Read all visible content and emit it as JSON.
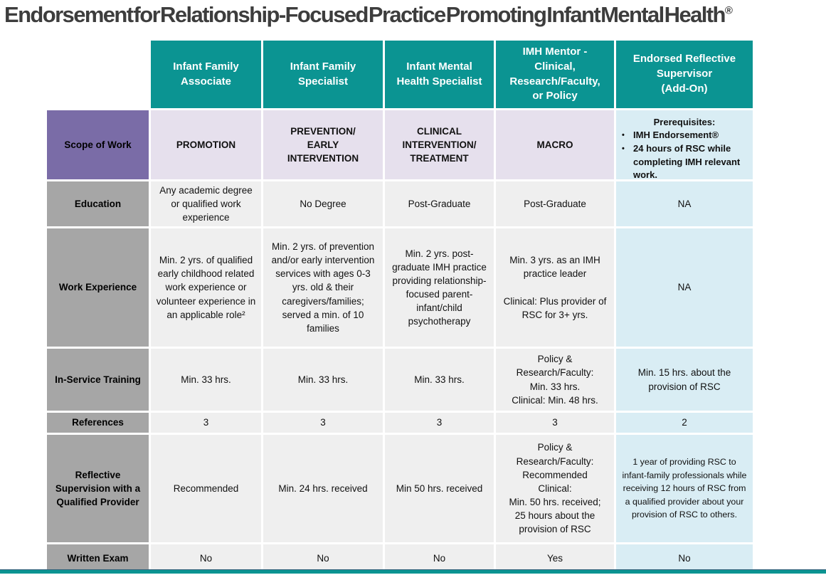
{
  "title": {
    "text": "Endorsement for Relationship-Focused Practice Promoting Infant Mental Health",
    "trademark": "®"
  },
  "columns": [
    "Infant Family\nAssociate",
    "Infant Family\nSpecialist",
    "Infant Mental\nHealth Specialist",
    "IMH Mentor -\nClinical,\nResearch/Faculty,\nor Policy",
    "Endorsed Reflective\nSupervisor\n(Add-On)"
  ],
  "rows": [
    {
      "label": "Scope of Work",
      "cells": [
        "PROMOTION",
        "PREVENTION/\nEARLY\nINTERVENTION",
        "CLINICAL\nINTERVENTION/\nTREATMENT",
        "MACRO"
      ]
    },
    {
      "label": "Education",
      "cells": [
        "Any academic degree or qualified work experience",
        "No Degree",
        "Post-Graduate",
        "Post-Graduate",
        "NA"
      ]
    },
    {
      "label": "Work Experience",
      "cells": [
        "Min. 2 yrs. of qualified early childhood related work experience or volunteer experience in an applicable role²",
        "Min. 2 yrs. of prevention and/or early intervention services with ages 0-3 yrs. old & their caregivers/families; served a min. of 10 families",
        "Min. 2 yrs. post-graduate IMH practice providing relationship-focused parent-infant/child psychotherapy",
        "Min. 3 yrs. as an IMH practice leader\n\nClinical: Plus provider of RSC for 3+ yrs.",
        "NA"
      ]
    },
    {
      "label": "In-Service Training",
      "cells": [
        "Min. 33 hrs.",
        "Min. 33 hrs.",
        "Min. 33 hrs.",
        "Policy &\nResearch/Faculty:\nMin. 33 hrs.\nClinical: Min. 48 hrs.",
        "Min. 15 hrs. about the provision of RSC"
      ]
    },
    {
      "label": "References",
      "cells": [
        "3",
        "3",
        "3",
        "3",
        "2"
      ]
    },
    {
      "label": "Reflective Supervision with a Qualified Provider",
      "cells": [
        "Recommended",
        "Min. 24 hrs. received",
        "Min 50 hrs. received",
        "Policy &\nResearch/Faculty:\nRecommended\nClinical:\nMin. 50 hrs. received;\n25 hours about the\nprovision of RSC",
        "1 year of providing RSC to infant-family professionals while receiving 12 hours of RSC from a qualified provider about your provision of RSC to others."
      ]
    },
    {
      "label": "Written Exam",
      "cells": [
        "No",
        "No",
        "No",
        "Yes",
        "No"
      ]
    }
  ],
  "prerequisites": {
    "heading": "Prerequisites:",
    "bullets": [
      "IMH Endorsement®",
      "24 hours of RSC while completing IMH relevant work."
    ]
  },
  "colors": {
    "header_teal": "#0b9492",
    "scope_purple": "#7a6ca7",
    "row_label_gray": "#a6a6a6",
    "scope_lavender": "#e6e0ed",
    "cell_light_gray": "#efefef",
    "addon_light_blue": "#d9edf4",
    "title_text": "#3d3d3d"
  }
}
